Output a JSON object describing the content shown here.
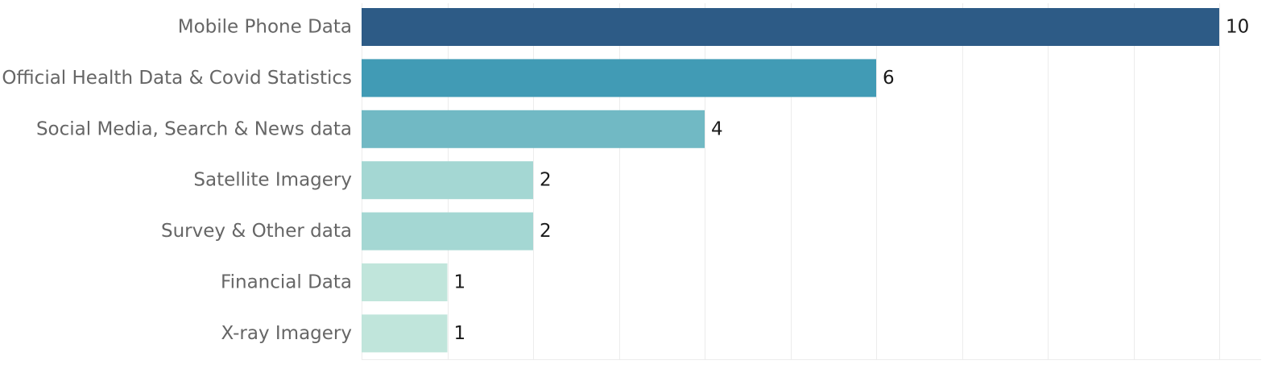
{
  "chart_data": {
    "type": "bar",
    "orientation": "horizontal",
    "categories": [
      "Mobile Phone Data",
      "Official Health Data & Covid Statistics",
      "Social Media, Search & News data",
      "Satellite Imagery",
      "Survey & Other data",
      "Financial Data",
      "X-ray Imagery"
    ],
    "values": [
      10,
      6,
      4,
      2,
      2,
      1,
      1
    ],
    "value_labels": [
      "10",
      "6",
      "4",
      "2",
      "2",
      "1",
      "1"
    ],
    "bar_colors": [
      "#2d5b86",
      "#419bb5",
      "#71b9c4",
      "#a4d7d3",
      "#a4d7d3",
      "#c0e5db",
      "#c0e5db"
    ],
    "xlim": [
      0,
      10
    ],
    "grid": true,
    "legend": "none",
    "title": "",
    "xlabel": "",
    "ylabel": ""
  },
  "colors": {
    "label_text": "#666666",
    "value_text": "#1a1a1a",
    "grid": "#ececec"
  }
}
